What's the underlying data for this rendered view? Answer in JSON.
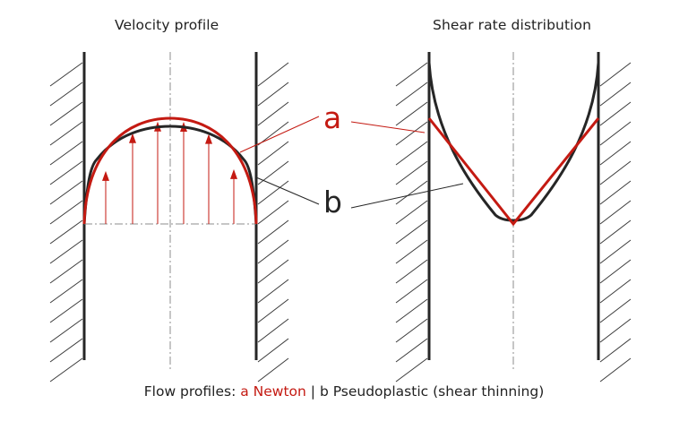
{
  "titles": {
    "velocity_profile": "Velocity profile",
    "shear_rate": "Shear rate distribution"
  },
  "labels": {
    "a": "a",
    "b": "b"
  },
  "caption": {
    "prefix": "Flow profiles: ",
    "newton": "a Newton",
    "separator": " | ",
    "pseudoplastic": "b Pseudoplastic (shear thinning)"
  },
  "colors": {
    "newton": "#c41a12",
    "pseudoplastic": "#262626",
    "text": "#222222",
    "hatch": "#3a3a3a",
    "centerline": "#8c8c8c"
  }
}
